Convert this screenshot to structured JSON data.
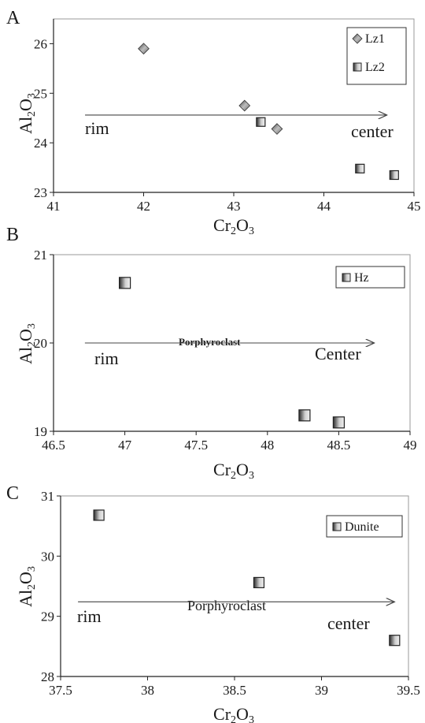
{
  "chart_data": [
    {
      "type": "scatter",
      "panel": "A",
      "xlabel": "Cr2O3",
      "ylabel": "Al2O3",
      "xlim": [
        41,
        45
      ],
      "ylim": [
        23,
        26.5
      ],
      "xticks": [
        "41",
        "42",
        "43",
        "44",
        "45"
      ],
      "yticks": [
        "23",
        "24",
        "25",
        "26"
      ],
      "grid": false,
      "legend_position": "top-right",
      "series": [
        {
          "name": "Lz1",
          "marker": "diamond",
          "x": [
            42.0,
            43.12,
            43.48
          ],
          "y": [
            25.9,
            24.75,
            24.28
          ]
        },
        {
          "name": "Lz2",
          "marker": "square",
          "x": [
            43.3,
            44.4,
            44.78
          ],
          "y": [
            24.42,
            23.48,
            23.35
          ]
        }
      ],
      "annotations": {
        "left": "rim",
        "middle": "",
        "right": "center"
      },
      "arrow": {
        "x": [
          41.35,
          44.7
        ],
        "y": [
          24.56,
          24.56
        ]
      }
    },
    {
      "type": "scatter",
      "panel": "B",
      "xlabel": "Cr2O3",
      "ylabel": "Al2O3",
      "xlim": [
        46.5,
        49
      ],
      "ylim": [
        19,
        21
      ],
      "xticks": [
        "46.5",
        "47",
        "47.5",
        "48",
        "48.5",
        "49"
      ],
      "yticks": [
        "19",
        "20",
        "21"
      ],
      "grid": false,
      "legend_position": "top-right",
      "series": [
        {
          "name": "Hz",
          "marker": "square",
          "x": [
            47.0,
            48.26,
            48.5
          ],
          "y": [
            20.68,
            19.18,
            19.1
          ]
        }
      ],
      "annotations": {
        "left": "rim",
        "middle": "Porphyroclast",
        "right": "Center"
      },
      "arrow": {
        "x": [
          46.72,
          48.75
        ],
        "y": [
          20.0,
          20.0
        ]
      }
    },
    {
      "type": "scatter",
      "panel": "C",
      "xlabel": "Cr2O3",
      "ylabel": "Al2O3",
      "xlim": [
        37.5,
        39.5
      ],
      "ylim": [
        28,
        31
      ],
      "xticks": [
        "37.5",
        "38",
        "38.5",
        "39",
        "39.5"
      ],
      "yticks": [
        "28",
        "29",
        "30",
        "31"
      ],
      "grid": false,
      "legend_position": "top-right",
      "series": [
        {
          "name": "Dunite",
          "marker": "square",
          "x": [
            37.72,
            38.64,
            39.42
          ],
          "y": [
            30.68,
            29.56,
            28.6
          ]
        }
      ],
      "annotations": {
        "left": "rim",
        "middle": "Porphyroclast",
        "right": "center"
      },
      "arrow": {
        "x": [
          37.6,
          39.42
        ],
        "y": [
          29.24,
          29.24
        ]
      }
    }
  ]
}
